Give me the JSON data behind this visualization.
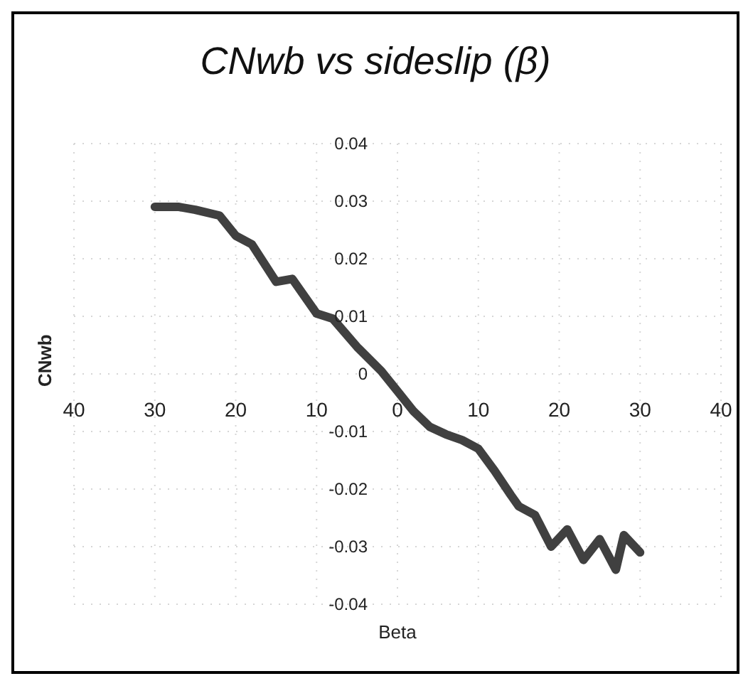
{
  "chart_data": {
    "type": "line",
    "title": "CNwb vs sideslip (β)",
    "xlabel": "Beta",
    "ylabel": "CNwb",
    "x": [
      -30,
      -27,
      -25,
      -22,
      -20,
      -18,
      -15,
      -13,
      -10,
      -8,
      -5,
      -2,
      0,
      2,
      4,
      6,
      8,
      10,
      12,
      14,
      15,
      17,
      19,
      21,
      23,
      25,
      27,
      28,
      30
    ],
    "series": [
      {
        "color": "#404040",
        "values": [
          0.029,
          0.029,
          0.0285,
          0.0275,
          0.024,
          0.0225,
          0.016,
          0.0165,
          0.0105,
          0.0096,
          0.0047,
          0.0005,
          -0.003,
          -0.0065,
          -0.0092,
          -0.0105,
          -0.0115,
          -0.013,
          -0.0168,
          -0.021,
          -0.023,
          -0.0245,
          -0.03,
          -0.027,
          -0.0323,
          -0.0287,
          -0.034,
          -0.028,
          -0.031
        ]
      }
    ],
    "xlim": [
      -40,
      40
    ],
    "xticks": [
      {
        "value": -40,
        "label": "40"
      },
      {
        "value": -30,
        "label": "30"
      },
      {
        "value": -20,
        "label": "20"
      },
      {
        "value": -10,
        "label": "10"
      },
      0,
      10,
      20,
      30,
      40
    ],
    "ylim": [
      -0.04,
      0.04
    ],
    "yticks": [
      {
        "value": -0.04,
        "label": "-0.04"
      },
      {
        "value": -0.03,
        "label": "-0.03"
      },
      {
        "value": -0.02,
        "label": "-0.02"
      },
      {
        "value": -0.01,
        "label": "-0.01"
      },
      0,
      {
        "value": 0.01,
        "label": "0.01"
      },
      {
        "value": 0.02,
        "label": "0.02"
      },
      {
        "value": 0.03,
        "label": "0.03"
      },
      {
        "value": 0.04,
        "label": "0.04"
      }
    ],
    "grid": true,
    "line_style": "solid",
    "marker": "none",
    "legend": false
  }
}
